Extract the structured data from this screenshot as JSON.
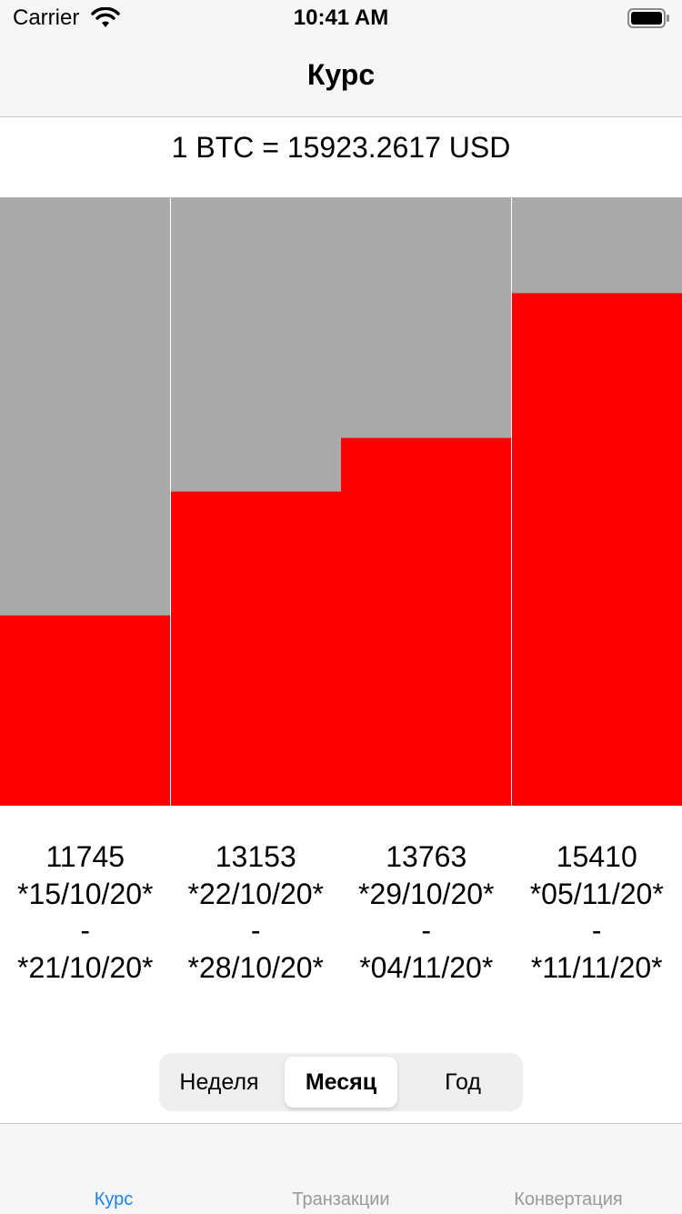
{
  "status_bar": {
    "carrier": "Carrier",
    "time": "10:41 AM",
    "wifi_icon": "wifi-icon",
    "battery_icon": "battery-icon"
  },
  "nav": {
    "title": "Курс"
  },
  "rate": {
    "text": "1 BTC = 15923.2617 USD"
  },
  "colors": {
    "bar": "#ff0000",
    "track": "#a9a9a9",
    "accent": "#1a82f0",
    "tab_inactive": "#999999"
  },
  "chart_data": {
    "type": "bar",
    "categories": [
      "*15/10/20* - *21/10/20*",
      "*22/10/20* - *28/10/20*",
      "*29/10/20* - *04/11/20*",
      "*05/11/20* - *11/11/20*"
    ],
    "values": [
      11745,
      13153,
      13763,
      15410
    ],
    "ylim": [
      9580,
      16500
    ]
  },
  "labels": [
    {
      "value": "11745",
      "start": "*15/10/20*",
      "sep": "-",
      "end": "*21/10/20*"
    },
    {
      "value": "13153",
      "start": "*22/10/20*",
      "sep": "-",
      "end": "*28/10/20*"
    },
    {
      "value": "13763",
      "start": "*29/10/20*",
      "sep": "-",
      "end": "*04/11/20*"
    },
    {
      "value": "15410",
      "start": "*05/11/20*",
      "sep": "-",
      "end": "*11/11/20*"
    }
  ],
  "segmented_control": {
    "options": [
      "Неделя",
      "Месяц",
      "Год"
    ],
    "selected": "Месяц"
  },
  "tab_bar": {
    "items": [
      "Курс",
      "Транзакции",
      "Конвертация"
    ],
    "active": "Курс"
  }
}
